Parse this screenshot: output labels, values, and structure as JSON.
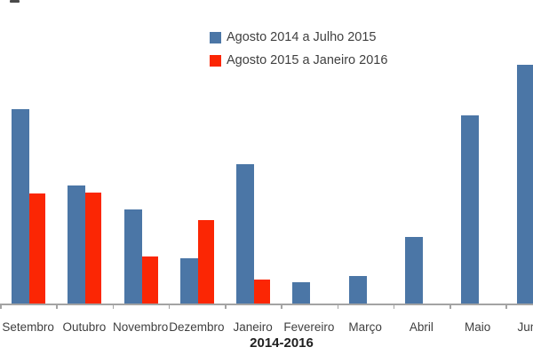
{
  "chart_data": {
    "type": "bar",
    "title": "",
    "xlabel": "2014-2016",
    "ylabel": "",
    "categories": [
      "Setembro",
      "Outubro",
      "Novembro",
      "Dezembro",
      "Janeiro",
      "Fevereiro",
      "Março",
      "Abril",
      "Maio",
      "Junho"
    ],
    "series": [
      {
        "name": "Agosto 2014 a Julho 2015",
        "color": "#4B76A6",
        "values": [
          219,
          133,
          106,
          51,
          157,
          24,
          31,
          75,
          212,
          269
        ]
      },
      {
        "name": "Agosto 2015 a Janeiro 2016",
        "color": "#FB2604",
        "values": [
          124,
          125,
          53,
          94,
          27,
          null,
          null,
          null,
          null,
          null
        ]
      }
    ],
    "value_units": "relative units (no value axis shown in chart)",
    "ylim": [
      0,
      280
    ],
    "grid": false,
    "legend_position": "top-center",
    "notes": {
      "clipped_right_label": "Jun",
      "axis_color": "#a3a3a3"
    }
  }
}
